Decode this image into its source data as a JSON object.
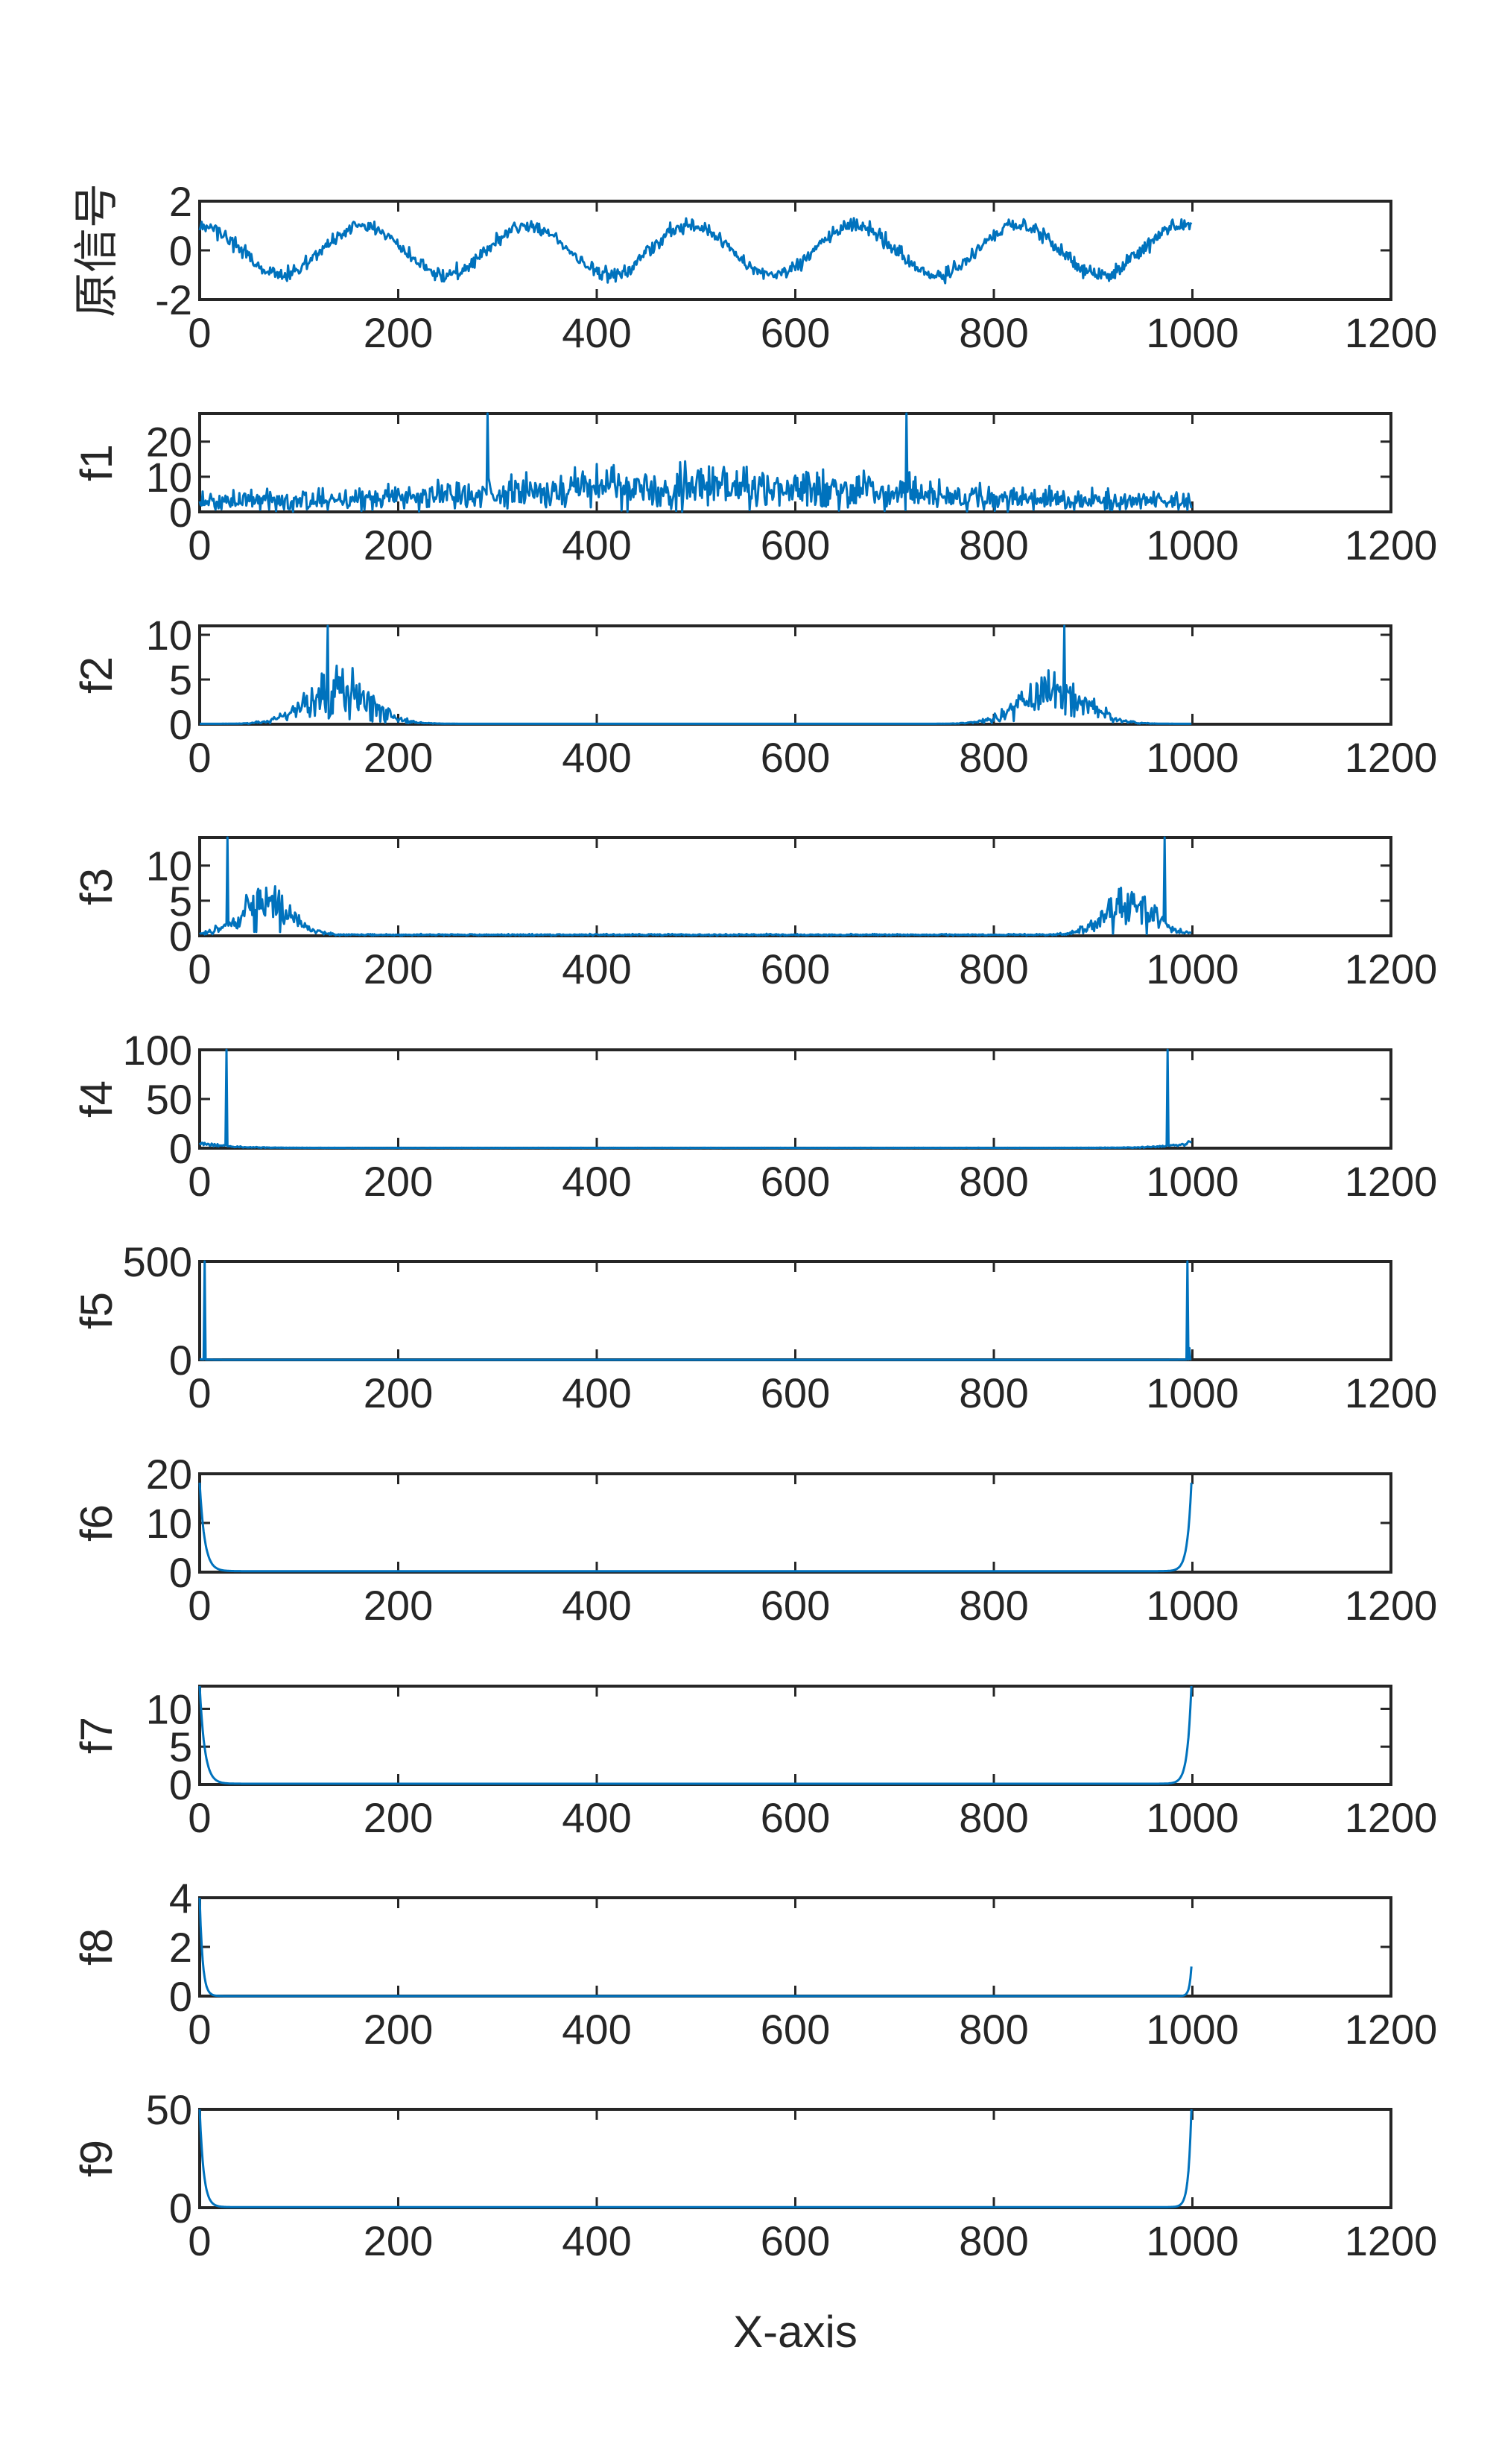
{
  "chart_data": {
    "type": "line",
    "xlabel": "X-axis",
    "xlim": [
      0,
      1200
    ],
    "xticks": [
      0,
      200,
      400,
      600,
      800,
      1000,
      1200
    ],
    "n_points": 1000,
    "line_color": "#0072BD",
    "subplots": [
      {
        "ylabel": "原信号",
        "ylim": [
          -2,
          2
        ],
        "yticks": [
          -2,
          0,
          2
        ],
        "description": "noisy sinusoid, amplitude ~1, period ~165 samples",
        "y": []
      },
      {
        "ylabel": "f1",
        "ylim": [
          0,
          28
        ],
        "yticks": [
          0,
          10,
          20
        ],
        "description": "broadband spectrum, peaks ~28 near x=290 and x=712",
        "y": []
      },
      {
        "ylabel": "f2",
        "ylim": [
          0,
          11
        ],
        "yticks": [
          0,
          5,
          10
        ],
        "description": "two spectral bands centered near x=130 and x=870, peak ~11",
        "y": []
      },
      {
        "ylabel": "f3",
        "ylim": [
          0,
          14
        ],
        "yticks": [
          0,
          5,
          10
        ],
        "description": "bands near x=60 and x=940, spikes near x=28 and x=972",
        "y": []
      },
      {
        "ylabel": "f4",
        "ylim": [
          0,
          100
        ],
        "yticks": [
          0,
          50,
          100
        ],
        "description": "spikes ~100 near x=27 and x=975",
        "y": []
      },
      {
        "ylabel": "f5",
        "ylim": [
          0,
          500
        ],
        "yticks": [
          0,
          500
        ],
        "description": "spikes ~500 near x=5 and x=995",
        "y": []
      },
      {
        "ylabel": "f6",
        "ylim": [
          0,
          20
        ],
        "yticks": [
          0,
          10,
          20
        ],
        "description": "decay from ~18 at edges",
        "y": []
      },
      {
        "ylabel": "f7",
        "ylim": [
          0,
          13
        ],
        "yticks": [
          0,
          5,
          10
        ],
        "description": "decay from ~13 at edges",
        "y": []
      },
      {
        "ylabel": "f8",
        "ylim": [
          0,
          4
        ],
        "yticks": [
          0,
          2,
          4
        ],
        "description": "decay from ~4 at x=0, ~1.2 at x=1000",
        "y": []
      },
      {
        "ylabel": "f9",
        "ylim": [
          0,
          50
        ],
        "yticks": [
          0,
          50
        ],
        "description": "decay from ~50 at edges",
        "y": []
      }
    ]
  }
}
